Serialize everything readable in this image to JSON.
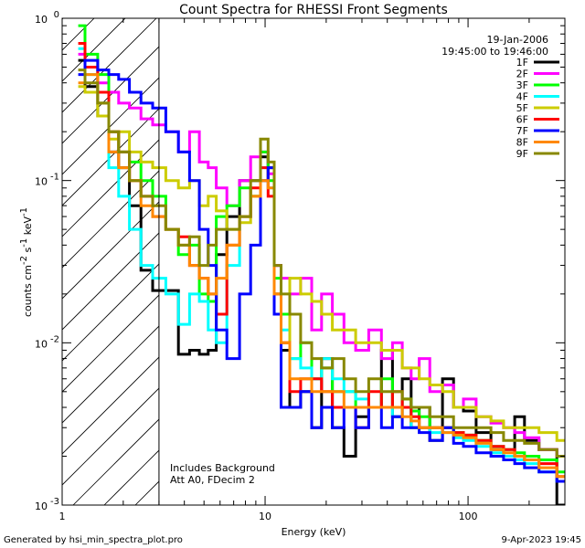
{
  "chart_data": {
    "type": "line",
    "title": "Count Spectra for RHESSI Front Segments",
    "xlabel": "Energy (keV)",
    "ylabel_main": "counts cm",
    "ylabel_sup1": "-2",
    "ylabel_mid": " s",
    "ylabel_sup2": "-1",
    "ylabel_end": " keV",
    "ylabel_sup3": "-1",
    "xscale": "log",
    "yscale": "log",
    "xlim": [
      1,
      300
    ],
    "ylim": [
      0.001,
      1
    ],
    "xticks": [
      {
        "v": 1,
        "label": "1"
      },
      {
        "v": 10,
        "label": "10"
      },
      {
        "v": 100,
        "label": "100"
      }
    ],
    "yticks": [
      {
        "v": 1,
        "base": "10",
        "exp": "0"
      },
      {
        "v": 0.1,
        "base": "10",
        "exp": "-1"
      },
      {
        "v": 0.01,
        "base": "10",
        "exp": "-2"
      },
      {
        "v": 0.001,
        "base": "10",
        "exp": "-3"
      }
    ],
    "attenuator_threshold_keV": 3,
    "date": "19-Jan-2006",
    "time_range": "19:45:00 to 19:46:00",
    "annotation_line1": "Includes Background",
    "annotation_line2": "Att A0, FDecim 2",
    "footer_left": "Generated by hsi_min_spectra_plot.pro",
    "footer_right": "9-Apr-2023 19:45",
    "legend": [
      {
        "name": "1F",
        "color": "#000000"
      },
      {
        "name": "2F",
        "color": "#ff00ff"
      },
      {
        "name": "3F",
        "color": "#00ff00"
      },
      {
        "name": "4F",
        "color": "#00ffff"
      },
      {
        "name": "5F",
        "color": "#cccc00"
      },
      {
        "name": "6F",
        "color": "#ff0000"
      },
      {
        "name": "7F",
        "color": "#0000ff"
      },
      {
        "name": "8F",
        "color": "#ff8800"
      },
      {
        "name": "9F",
        "color": "#888800"
      }
    ],
    "series": [
      {
        "name": "1F",
        "color": "#000000",
        "x": [
          1.2,
          1.4,
          1.6,
          1.8,
          2.0,
          2.3,
          2.6,
          3.0,
          3.5,
          4.0,
          4.5,
          5.0,
          5.5,
          6.0,
          7.0,
          8.0,
          9.0,
          10.0,
          10.7,
          11.5,
          12.5,
          14,
          16,
          18,
          20,
          23,
          26,
          30,
          35,
          40,
          45,
          50,
          55,
          60,
          70,
          80,
          90,
          100,
          120,
          140,
          160,
          180,
          200,
          250,
          300
        ],
        "y": [
          0.55,
          0.38,
          0.25,
          0.15,
          0.12,
          0.07,
          0.028,
          0.021,
          0.021,
          0.0085,
          0.009,
          0.0085,
          0.009,
          0.035,
          0.06,
          0.1,
          0.1,
          0.14,
          0.12,
          0.03,
          0.009,
          0.004,
          0.005,
          0.003,
          0.008,
          0.003,
          0.002,
          0.0035,
          0.004,
          0.009,
          0.0035,
          0.006,
          0.003,
          0.004,
          0.0025,
          0.006,
          0.004,
          0.0038,
          0.0028,
          0.0022,
          0.002,
          0.0035,
          0.0025,
          0.0022,
          0.001
        ]
      },
      {
        "name": "2F",
        "color": "#ff00ff",
        "x": [
          1.2,
          1.4,
          1.6,
          1.8,
          2.0,
          2.3,
          2.6,
          3.0,
          3.5,
          4.0,
          4.5,
          5.0,
          5.5,
          6.0,
          7.0,
          8.0,
          9.0,
          10.0,
          10.7,
          11.5,
          12.5,
          14,
          16,
          18,
          20,
          23,
          26,
          30,
          35,
          40,
          45,
          50,
          55,
          60,
          70,
          80,
          90,
          100,
          120,
          140,
          160,
          180,
          200,
          250,
          300
        ],
        "y": [
          0.6,
          0.5,
          0.4,
          0.35,
          0.3,
          0.28,
          0.24,
          0.22,
          0.2,
          0.15,
          0.2,
          0.13,
          0.12,
          0.09,
          0.07,
          0.1,
          0.14,
          0.15,
          0.11,
          0.03,
          0.025,
          0.02,
          0.025,
          0.012,
          0.02,
          0.015,
          0.01,
          0.009,
          0.012,
          0.008,
          0.01,
          0.007,
          0.006,
          0.008,
          0.005,
          0.0055,
          0.004,
          0.0045,
          0.0035,
          0.0032,
          0.003,
          0.0028,
          0.0026,
          0.0022,
          0.002
        ]
      },
      {
        "name": "3F",
        "color": "#00ff00",
        "x": [
          1.2,
          1.4,
          1.6,
          1.8,
          2.0,
          2.3,
          2.6,
          3.0,
          3.5,
          4.0,
          4.5,
          5.0,
          5.5,
          6.0,
          7.0,
          8.0,
          9.0,
          10.0,
          10.7,
          11.5,
          12.5,
          14,
          16,
          18,
          20,
          23,
          26,
          30,
          35,
          40,
          45,
          50,
          55,
          60,
          70,
          80,
          90,
          100,
          120,
          140,
          160,
          180,
          200,
          250,
          300
        ],
        "y": [
          0.9,
          0.6,
          0.45,
          0.2,
          0.15,
          0.13,
          0.1,
          0.08,
          0.05,
          0.035,
          0.04,
          0.02,
          0.018,
          0.06,
          0.07,
          0.09,
          0.08,
          0.15,
          0.1,
          0.025,
          0.015,
          0.008,
          0.01,
          0.006,
          0.007,
          0.005,
          0.005,
          0.004,
          0.004,
          0.006,
          0.004,
          0.0045,
          0.0038,
          0.0035,
          0.003,
          0.003,
          0.0028,
          0.0027,
          0.0025,
          0.0023,
          0.0022,
          0.0021,
          0.002,
          0.0019,
          0.0016
        ]
      },
      {
        "name": "4F",
        "color": "#00ffff",
        "x": [
          1.2,
          1.4,
          1.6,
          1.8,
          2.0,
          2.3,
          2.6,
          3.0,
          3.5,
          4.0,
          4.5,
          5.0,
          5.5,
          6.0,
          7.0,
          8.0,
          9.0,
          10.0,
          10.7,
          11.5,
          12.5,
          14,
          16,
          18,
          20,
          23,
          26,
          30,
          35,
          40,
          45,
          50,
          55,
          60,
          70,
          80,
          90,
          100,
          120,
          140,
          160,
          180,
          200,
          250,
          300
        ],
        "y": [
          0.65,
          0.45,
          0.3,
          0.12,
          0.08,
          0.05,
          0.03,
          0.025,
          0.02,
          0.013,
          0.02,
          0.018,
          0.012,
          0.01,
          0.03,
          0.06,
          0.08,
          0.12,
          0.09,
          0.02,
          0.012,
          0.008,
          0.007,
          0.006,
          0.008,
          0.006,
          0.005,
          0.0045,
          0.004,
          0.004,
          0.0035,
          0.004,
          0.003,
          0.003,
          0.0028,
          0.0028,
          0.0026,
          0.0025,
          0.0023,
          0.0021,
          0.002,
          0.0019,
          0.0018,
          0.0016,
          0.0014
        ]
      },
      {
        "name": "5F",
        "color": "#cccc00",
        "x": [
          1.2,
          1.4,
          1.6,
          1.8,
          2.0,
          2.3,
          2.6,
          3.0,
          3.5,
          4.0,
          4.5,
          5.0,
          5.5,
          6.0,
          7.0,
          8.0,
          9.0,
          10.0,
          10.7,
          11.5,
          12.5,
          14,
          16,
          18,
          20,
          23,
          26,
          30,
          35,
          40,
          45,
          50,
          55,
          60,
          70,
          80,
          90,
          100,
          120,
          140,
          160,
          180,
          200,
          250,
          300
        ],
        "y": [
          0.38,
          0.35,
          0.25,
          0.18,
          0.2,
          0.15,
          0.13,
          0.12,
          0.1,
          0.09,
          0.1,
          0.07,
          0.08,
          0.065,
          0.05,
          0.055,
          0.08,
          0.1,
          0.12,
          0.02,
          0.01,
          0.025,
          0.02,
          0.018,
          0.015,
          0.012,
          0.012,
          0.01,
          0.01,
          0.009,
          0.009,
          0.007,
          0.007,
          0.006,
          0.0055,
          0.005,
          0.004,
          0.004,
          0.0035,
          0.0033,
          0.003,
          0.003,
          0.003,
          0.0028,
          0.0025
        ]
      },
      {
        "name": "6F",
        "color": "#ff0000",
        "x": [
          1.2,
          1.4,
          1.6,
          1.8,
          2.0,
          2.3,
          2.6,
          3.0,
          3.5,
          4.0,
          4.5,
          5.0,
          5.5,
          6.0,
          7.0,
          8.0,
          9.0,
          10.0,
          10.7,
          11.5,
          12.5,
          14,
          16,
          18,
          20,
          23,
          26,
          30,
          35,
          40,
          45,
          50,
          55,
          60,
          70,
          80,
          90,
          100,
          120,
          140,
          160,
          180,
          200,
          250,
          300
        ],
        "y": [
          0.7,
          0.5,
          0.35,
          0.2,
          0.15,
          0.1,
          0.08,
          0.06,
          0.05,
          0.045,
          0.03,
          0.025,
          0.02,
          0.015,
          0.04,
          0.06,
          0.09,
          0.12,
          0.08,
          0.02,
          0.01,
          0.005,
          0.006,
          0.006,
          0.005,
          0.004,
          0.004,
          0.003,
          0.005,
          0.004,
          0.005,
          0.004,
          0.0035,
          0.003,
          0.003,
          0.003,
          0.0028,
          0.0027,
          0.0025,
          0.0023,
          0.0022,
          0.002,
          0.0019,
          0.0018,
          0.0015
        ]
      },
      {
        "name": "7F",
        "color": "#0000ff",
        "x": [
          1.2,
          1.4,
          1.6,
          1.8,
          2.0,
          2.3,
          2.6,
          3.0,
          3.5,
          4.0,
          4.5,
          5.0,
          5.5,
          6.0,
          7.0,
          8.0,
          9.0,
          10.0,
          10.7,
          11.5,
          12.5,
          14,
          16,
          18,
          20,
          23,
          26,
          30,
          35,
          40,
          45,
          50,
          55,
          60,
          70,
          80,
          90,
          100,
          120,
          140,
          160,
          180,
          200,
          250,
          300
        ],
        "y": [
          0.45,
          0.55,
          0.48,
          0.45,
          0.42,
          0.35,
          0.3,
          0.28,
          0.2,
          0.15,
          0.1,
          0.05,
          0.03,
          0.012,
          0.008,
          0.02,
          0.04,
          0.1,
          0.12,
          0.015,
          0.004,
          0.004,
          0.005,
          0.003,
          0.004,
          0.003,
          0.004,
          0.003,
          0.004,
          0.003,
          0.0035,
          0.003,
          0.003,
          0.0028,
          0.0025,
          0.003,
          0.0024,
          0.0023,
          0.0021,
          0.002,
          0.0019,
          0.0018,
          0.0017,
          0.0016,
          0.0014
        ]
      },
      {
        "name": "8F",
        "color": "#ff8800",
        "x": [
          1.2,
          1.4,
          1.6,
          1.8,
          2.0,
          2.3,
          2.6,
          3.0,
          3.5,
          4.0,
          4.5,
          5.0,
          5.5,
          6.0,
          7.0,
          8.0,
          9.0,
          10.0,
          10.7,
          11.5,
          12.5,
          14,
          16,
          18,
          20,
          23,
          26,
          30,
          35,
          40,
          45,
          50,
          55,
          60,
          70,
          80,
          90,
          100,
          120,
          140,
          160,
          180,
          200,
          250,
          300
        ],
        "y": [
          0.4,
          0.45,
          0.3,
          0.15,
          0.12,
          0.1,
          0.07,
          0.06,
          0.05,
          0.04,
          0.03,
          0.025,
          0.02,
          0.025,
          0.04,
          0.06,
          0.08,
          0.1,
          0.09,
          0.02,
          0.01,
          0.006,
          0.006,
          0.005,
          0.005,
          0.005,
          0.004,
          0.004,
          0.004,
          0.004,
          0.004,
          0.0035,
          0.0033,
          0.003,
          0.003,
          0.0028,
          0.0027,
          0.0026,
          0.0024,
          0.0022,
          0.0021,
          0.002,
          0.0019,
          0.0017,
          0.0015
        ]
      },
      {
        "name": "9F",
        "color": "#888800",
        "x": [
          1.2,
          1.4,
          1.6,
          1.8,
          2.0,
          2.3,
          2.6,
          3.0,
          3.5,
          4.0,
          4.5,
          5.0,
          5.5,
          6.0,
          7.0,
          8.0,
          9.0,
          10.0,
          10.7,
          11.5,
          12.5,
          14,
          16,
          18,
          20,
          23,
          26,
          30,
          35,
          40,
          45,
          50,
          55,
          60,
          70,
          80,
          90,
          100,
          120,
          140,
          160,
          180,
          200,
          250,
          300
        ],
        "y": [
          0.48,
          0.4,
          0.3,
          0.2,
          0.15,
          0.1,
          0.08,
          0.07,
          0.05,
          0.04,
          0.045,
          0.03,
          0.04,
          0.05,
          0.05,
          0.06,
          0.1,
          0.18,
          0.13,
          0.03,
          0.02,
          0.015,
          0.01,
          0.008,
          0.007,
          0.008,
          0.006,
          0.005,
          0.006,
          0.005,
          0.005,
          0.0045,
          0.004,
          0.004,
          0.0035,
          0.0035,
          0.003,
          0.003,
          0.003,
          0.0028,
          0.0025,
          0.0025,
          0.0024,
          0.0022,
          0.002
        ]
      }
    ]
  }
}
